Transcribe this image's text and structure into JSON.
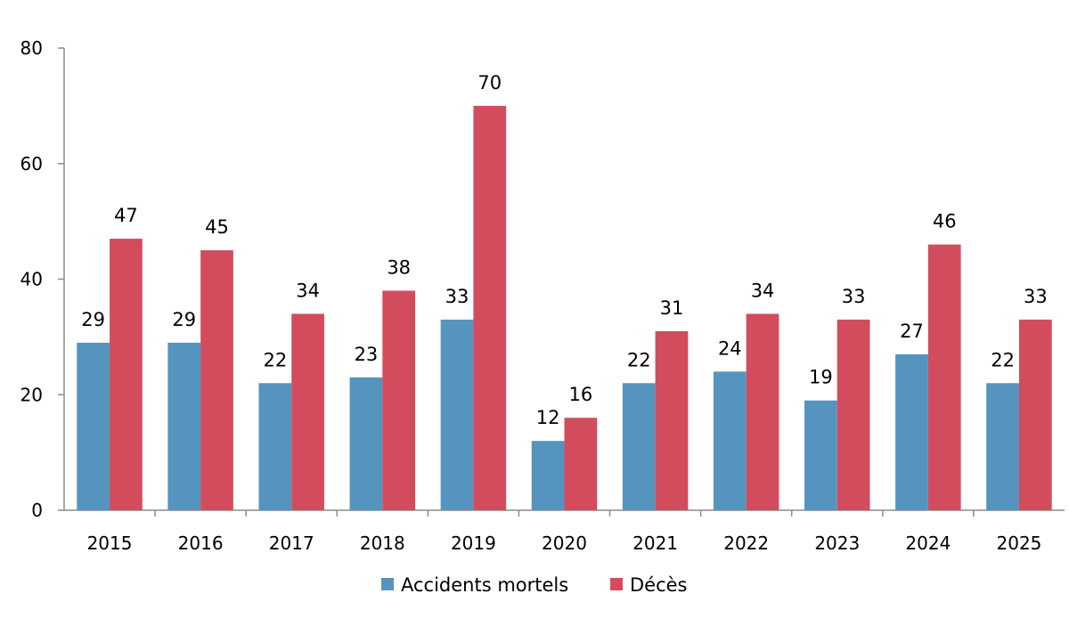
{
  "chart_data": {
    "type": "bar",
    "title": "",
    "xlabel": "",
    "ylabel": "",
    "categories": [
      "2015",
      "2016",
      "2017",
      "2018",
      "2019",
      "2020",
      "2021",
      "2022",
      "2023",
      "2024",
      "2025"
    ],
    "series": [
      {
        "name": "Accidents mortels",
        "color": "#5594be",
        "values": [
          29,
          29,
          22,
          23,
          33,
          12,
          22,
          24,
          19,
          27,
          22
        ]
      },
      {
        "name": "Décès",
        "color": "#d34c5d",
        "values": [
          47,
          45,
          34,
          38,
          70,
          16,
          31,
          34,
          33,
          46,
          33
        ]
      }
    ],
    "ylim": [
      0,
      80
    ],
    "yticks": [
      0,
      20,
      40,
      60,
      80
    ],
    "grid": false,
    "data_labels": true,
    "legend": "bottom"
  }
}
